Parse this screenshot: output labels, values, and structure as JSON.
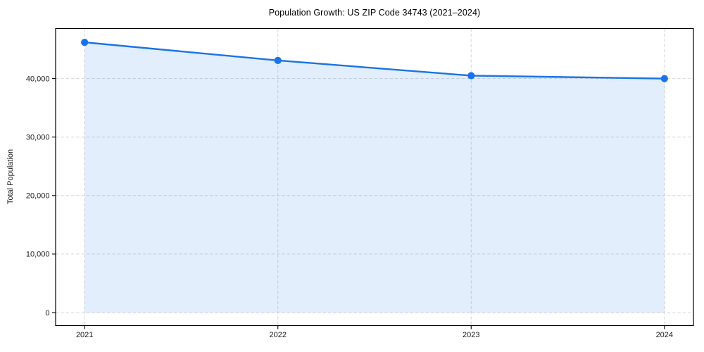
{
  "figure": {
    "background": "#ffffff"
  },
  "chart_data": {
    "type": "line",
    "title": "Population Growth: US ZIP Code 34743 (2021–2024)",
    "xlabel": "",
    "ylabel": "Total Population",
    "x": [
      2021,
      2022,
      2023,
      2024
    ],
    "x_tick_labels": [
      "2021",
      "2022",
      "2023",
      "2024"
    ],
    "series": [
      {
        "name": "Total Population",
        "values": [
          46200,
          43100,
          40500,
          40000
        ],
        "line_color": "#1a73e8",
        "marker": "circle",
        "area_fill": true,
        "fill_color": "rgba(26,115,232,0.12)",
        "fill_baseline": 0
      }
    ],
    "y_ticks": [
      0,
      10000,
      20000,
      30000,
      40000
    ],
    "y_tick_labels": [
      "0",
      "10,000",
      "20,000",
      "30,000",
      "40,000"
    ],
    "xlim": [
      2020.85,
      2024.15
    ],
    "ylim": [
      -2230,
      48560
    ],
    "grid": true,
    "grid_line_style": "dashed",
    "grid_color": "#d8d8d8",
    "axis_color": "#000000",
    "tick_label_color": "#1a1a1a",
    "legend_position": "none"
  }
}
